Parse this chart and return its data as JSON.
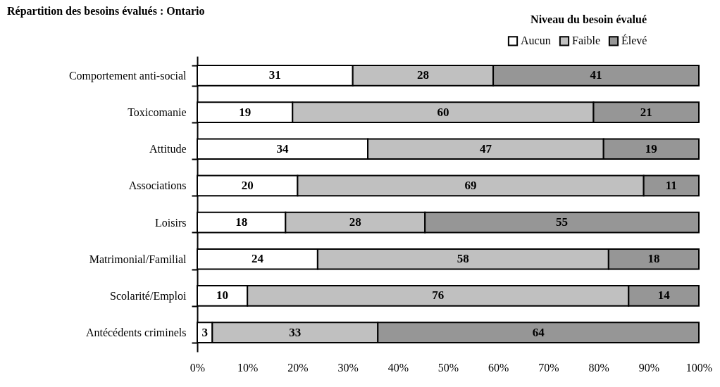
{
  "chart_data": {
    "type": "bar",
    "orientation": "horizontal",
    "stacked": true,
    "title": "Répartition des besoins évalués : Ontario",
    "legend_title": "Niveau du besoin évalué",
    "legend": "top right",
    "grid": false,
    "categories": [
      "Comportement anti-social",
      "Toxicomanie",
      "Attitude",
      "Associations",
      "Loisirs",
      "Matrimonial/Familial",
      "Scolarité/Emploi",
      "Antécédents criminels"
    ],
    "series": [
      {
        "name": "Aucun",
        "color": "#ffffff",
        "values": [
          31,
          19,
          34,
          20,
          17.6,
          24,
          10,
          3
        ],
        "value_labels": [
          "31",
          "19",
          "34",
          "20",
          "18",
          "24",
          "10",
          "3"
        ]
      },
      {
        "name": "Faible",
        "color": "#c0c0c0",
        "values": [
          28,
          60,
          47,
          69,
          27.8,
          58,
          76,
          33
        ],
        "value_labels": [
          "28",
          "60",
          "47",
          "69",
          "28",
          "58",
          "76",
          "33"
        ]
      },
      {
        "name": "Élevé",
        "color": "#969696",
        "values": [
          41,
          21,
          19,
          11,
          54.6,
          18,
          14,
          64
        ],
        "value_labels": [
          "41",
          "21",
          "19",
          "11",
          "55",
          "18",
          "14",
          "64"
        ]
      }
    ],
    "xlim": [
      0,
      100
    ],
    "xticks": [
      {
        "value": 0,
        "label": "0%"
      },
      {
        "value": 10,
        "label": "10%"
      },
      {
        "value": 20,
        "label": "20%"
      },
      {
        "value": 30,
        "label": "30%"
      },
      {
        "value": 40,
        "label": "40%"
      },
      {
        "value": 50,
        "label": "50%"
      },
      {
        "value": 60,
        "label": "60%"
      },
      {
        "value": 70,
        "label": "70%"
      },
      {
        "value": 80,
        "label": "80%"
      },
      {
        "value": 90,
        "label": "90%"
      },
      {
        "value": 100,
        "label": "100%"
      }
    ]
  }
}
